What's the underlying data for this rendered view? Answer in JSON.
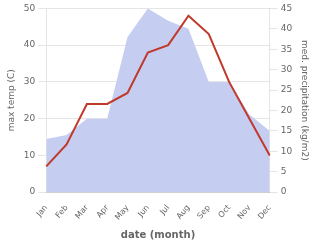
{
  "chart_data": {
    "type": "line",
    "categories": [
      "Jan",
      "Feb",
      "Mar",
      "Apr",
      "May",
      "Jun",
      "Jul",
      "Aug",
      "Sep",
      "Oct",
      "Nov",
      "Dec"
    ],
    "series": [
      {
        "type": "area",
        "color": "#c5cef0",
        "axis": "y2",
        "values": [
          13,
          14,
          18,
          18,
          38,
          45,
          42,
          40,
          27,
          27,
          19,
          15
        ]
      },
      {
        "type": "line",
        "color": "#c0392b",
        "values": [
          7,
          13,
          24,
          24,
          27,
          38,
          40,
          48,
          43,
          30,
          20,
          10
        ]
      }
    ],
    "xlabel": "date (month)",
    "ylabel": "max temp (C)",
    "y2label": "med. precipitation (kg/m2)",
    "ylim": [
      0,
      50
    ],
    "yticks": [
      0,
      10,
      20,
      30,
      40,
      50
    ],
    "y2lim": [
      0,
      45
    ],
    "y2ticks": [
      0,
      5,
      10,
      15,
      20,
      25,
      30,
      35,
      40,
      45
    ],
    "grid": true
  }
}
